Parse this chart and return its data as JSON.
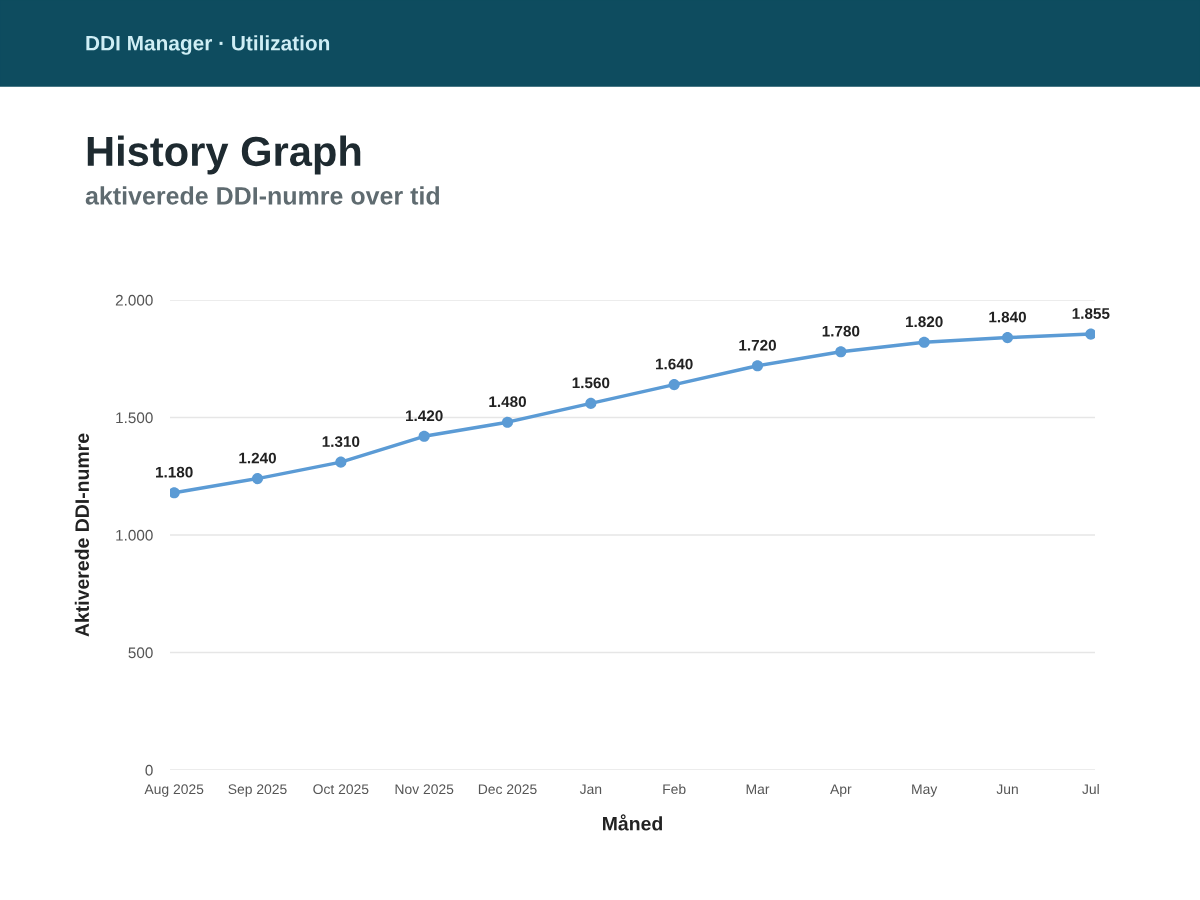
{
  "chart_data": {
    "type": "line",
    "title": "History Graph",
    "subtitle": "aktiverede DDI-numre over tid",
    "annotations": [
      "DDI Manager · Utilization"
    ],
    "xlabel": "Måned",
    "ylabel": "Aktiverede DDI-numre",
    "categories": [
      "Aug 2025",
      "Sep 2025",
      "Oct 2025",
      "Nov 2025",
      "Dec 2025",
      "Jan",
      "Feb",
      "Mar",
      "Apr",
      "May",
      "Jun",
      "Jul"
    ],
    "series": [
      {
        "color": "#5b9bd5",
        "values": [
          1180,
          1240,
          1310,
          1420,
          1480,
          1560,
          1640,
          1720,
          1780,
          1820,
          1840,
          1855
        ],
        "value_labels": [
          "1.180",
          "1.240",
          "1.310",
          "1.420",
          "1.480",
          "1.560",
          "1.640",
          "1.720",
          "1.780",
          "1.820",
          "1.840",
          "1.855"
        ]
      }
    ],
    "ylim": [
      0,
      2000
    ],
    "yticks": [
      {
        "value": 0,
        "label": "0"
      },
      {
        "value": 500,
        "label": "500"
      },
      {
        "value": 1000,
        "label": "1.000"
      },
      {
        "value": 1500,
        "label": "1.500"
      },
      {
        "value": 2000,
        "label": "2.000"
      }
    ],
    "grid": "y",
    "marker": "circle",
    "line_style": "solid"
  }
}
